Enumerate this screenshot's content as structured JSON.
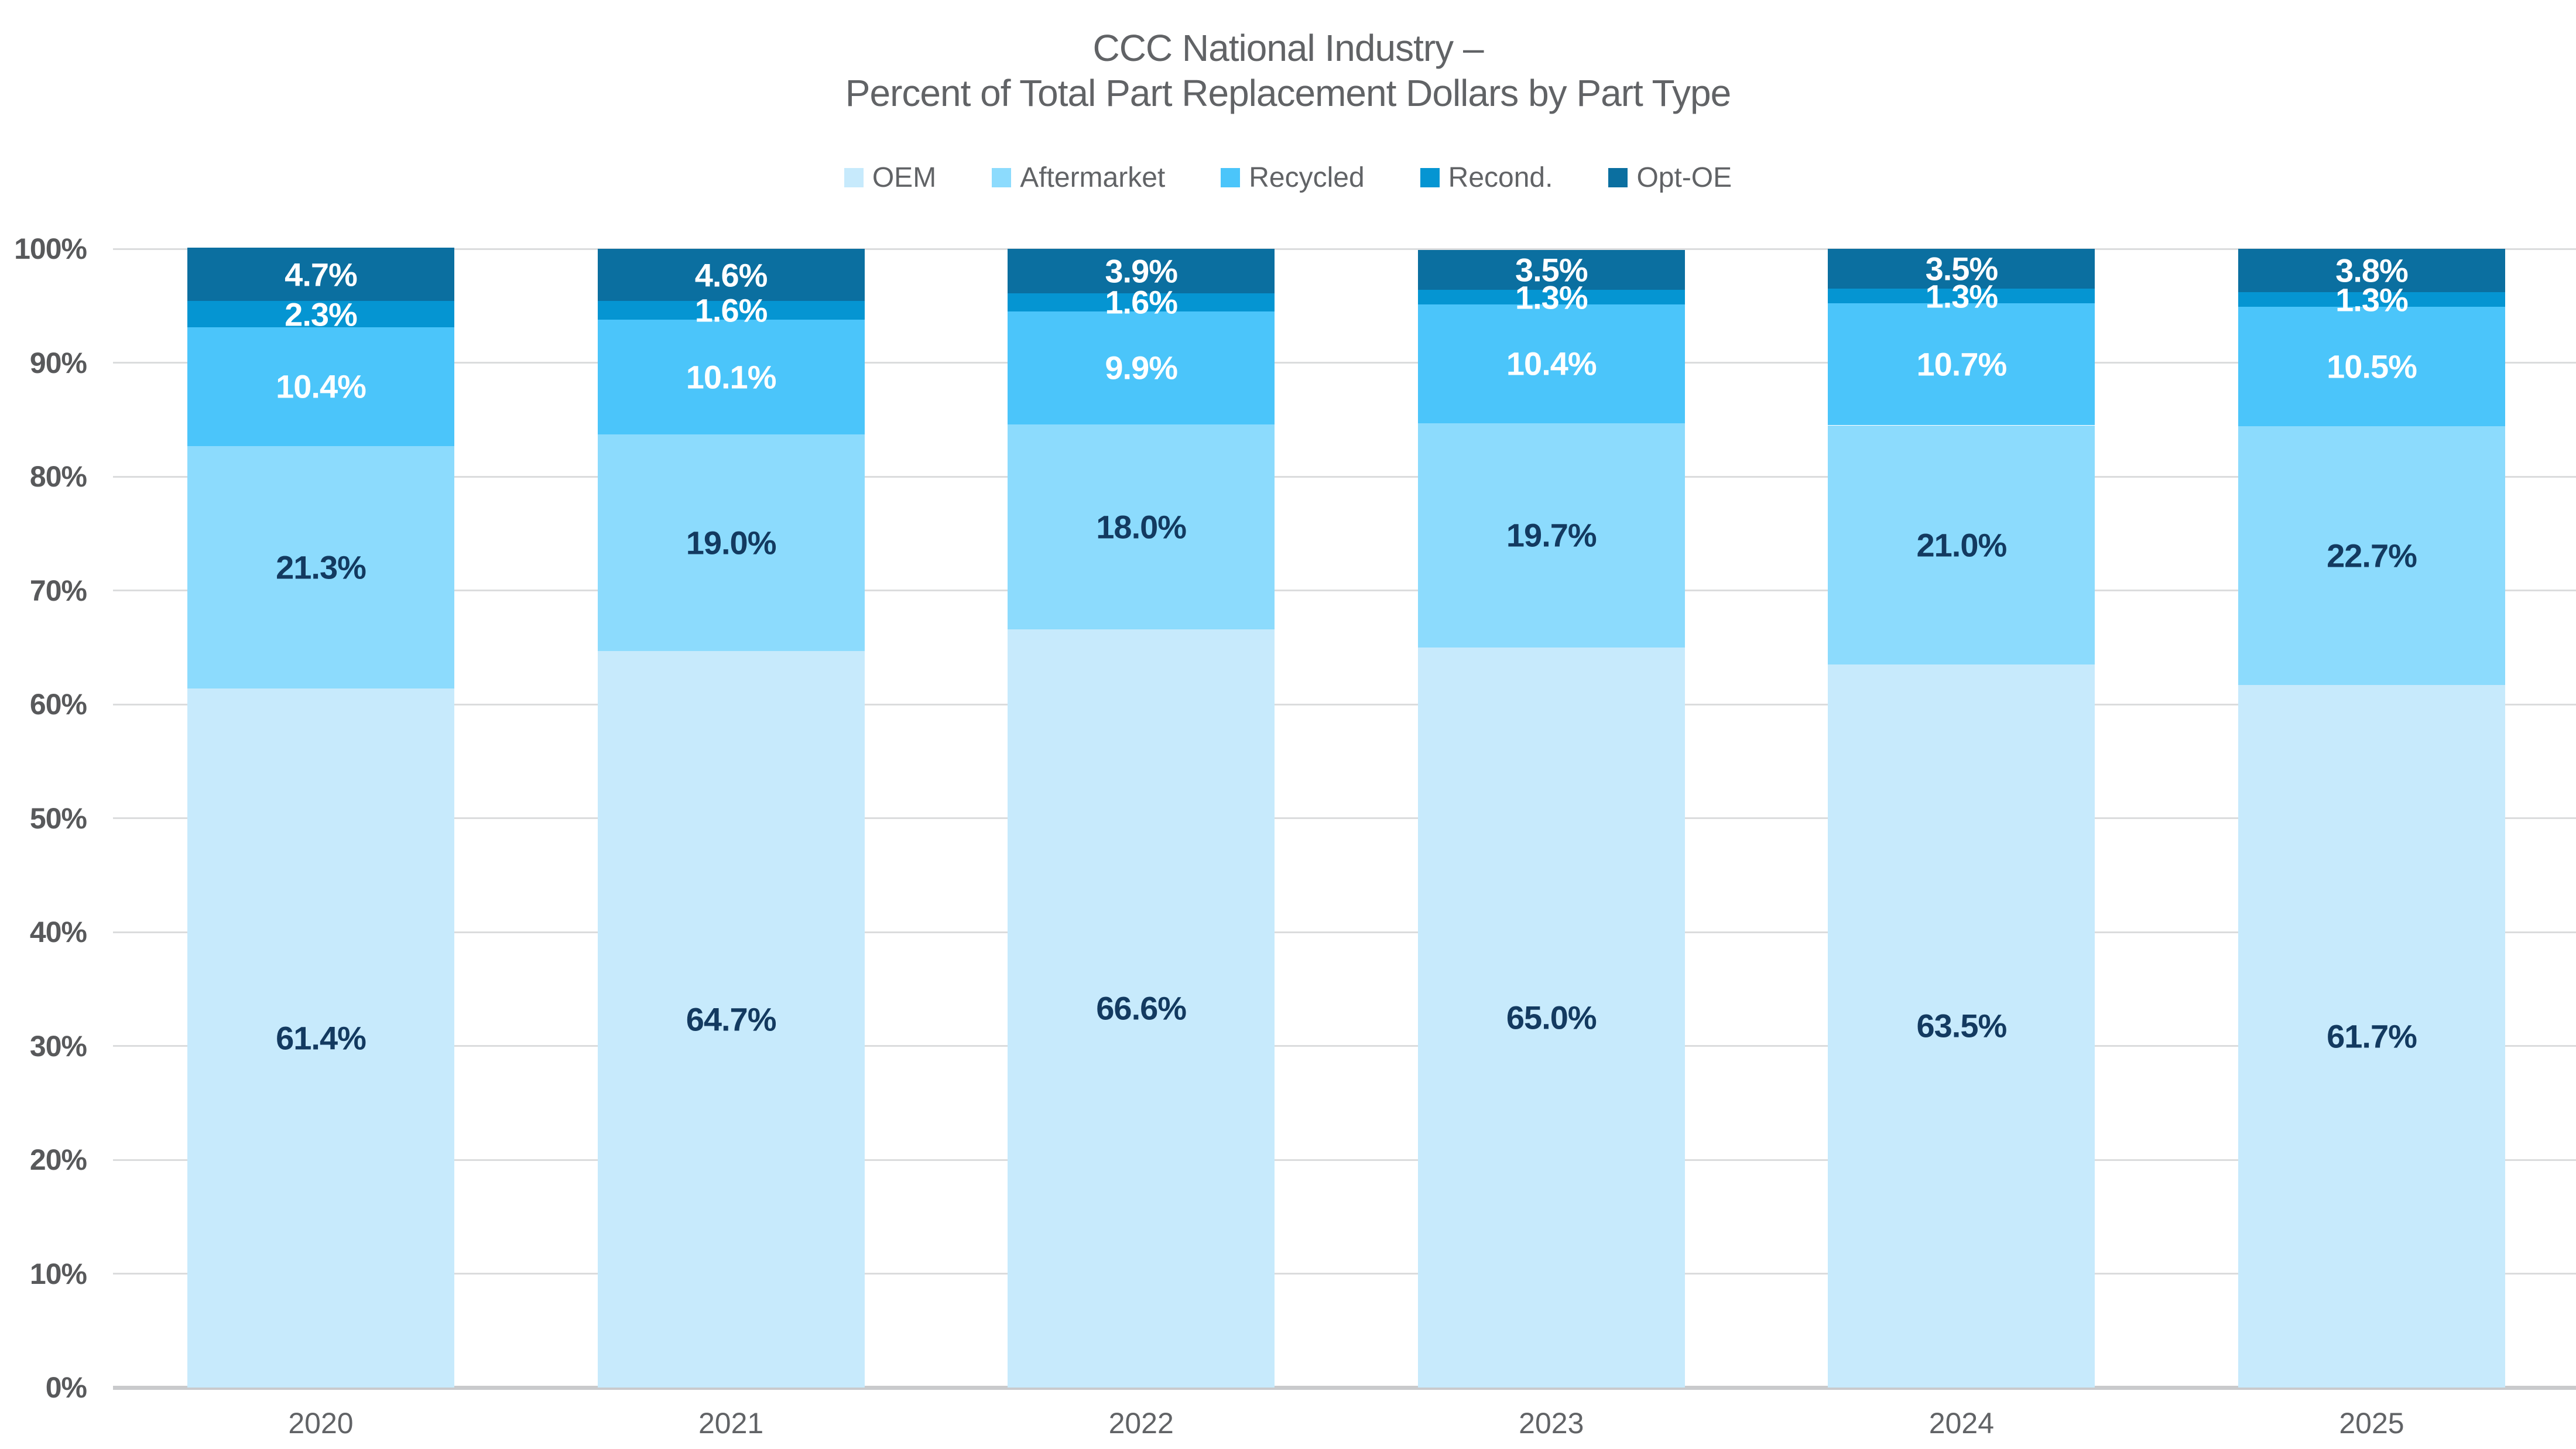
{
  "title": {
    "line1": "CCC National Industry –",
    "line2": "Percent of Total Part Replacement Dollars by Part Type"
  },
  "colors": {
    "gridline": "#DBDCDD",
    "baseline": "#C9CACC",
    "y_tick_text": "#58595B",
    "x_tick_text": "#616366",
    "title_text": "#616366",
    "legend_text": "#616366",
    "label_dark": "#133A60",
    "label_light": "#FFFFFF"
  },
  "chart_data": {
    "type": "bar",
    "stacked": true,
    "title": "CCC National Industry – Percent of Total Part Replacement Dollars by Part Type",
    "categories": [
      "2020",
      "2021",
      "2022",
      "2023",
      "2024",
      "2025"
    ],
    "series": [
      {
        "name": "OEM",
        "color": "#C7EAFC",
        "label_color": "#133A60",
        "values": [
          61.4,
          64.7,
          66.6,
          65.0,
          63.5,
          61.7
        ]
      },
      {
        "name": "Aftermarket",
        "color": "#8CDBFD",
        "label_color": "#133A60",
        "values": [
          21.3,
          19.0,
          18.0,
          19.7,
          21.0,
          22.7
        ]
      },
      {
        "name": "Recycled",
        "color": "#4BC5FA",
        "label_color": "#FFFFFF",
        "values": [
          10.4,
          10.1,
          9.9,
          10.4,
          10.7,
          10.5
        ]
      },
      {
        "name": "Recond.",
        "color": "#0595D2",
        "label_color": "#FFFFFF",
        "values": [
          2.3,
          1.6,
          1.6,
          1.3,
          1.3,
          1.3
        ]
      },
      {
        "name": "Opt-OE",
        "color": "#0B6FA0",
        "label_color": "#FFFFFF",
        "values": [
          4.7,
          4.6,
          3.9,
          3.5,
          3.5,
          3.8
        ]
      }
    ],
    "ylim": [
      0,
      100
    ],
    "yticks": [
      "0%",
      "10%",
      "20%",
      "30%",
      "40%",
      "50%",
      "60%",
      "70%",
      "80%",
      "90%",
      "100%"
    ],
    "value_suffix": "%",
    "grid": true,
    "legend_position": "top"
  }
}
